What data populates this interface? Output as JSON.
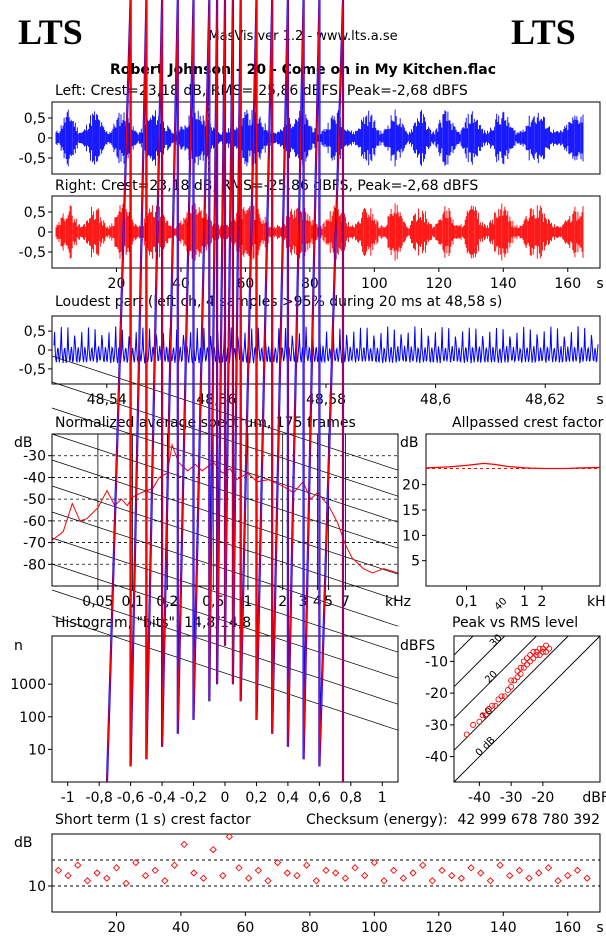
{
  "header": {
    "logo_left": "LTS",
    "logo_right": "LTS",
    "app_title": "MasVis ver 1.2 - www.lts.a.se",
    "file_title": "Robert Johnson - 20 - Come on in My Kitchen.flac"
  },
  "colors": {
    "left_channel": "#0000ff",
    "right_channel": "#ff0000",
    "background": "#ffffff",
    "axis": "#000000"
  },
  "chart_data": [
    {
      "id": "left_waveform",
      "type": "area",
      "title": "Left: Crest=23,18 dB, RMS=-25,86 dBFS, Peak=-2,68 dBFS",
      "y_ticks": [
        "0,5",
        "0",
        "-0,5"
      ],
      "ylim": [
        -0.9,
        0.9
      ],
      "xlim": [
        0,
        170
      ],
      "marker_x": 48.58
    },
    {
      "id": "right_waveform",
      "type": "area",
      "title": "Right: Crest=23,18 dB, RMS=-25,86 dBFS, Peak=-2,68 dBFS",
      "y_ticks": [
        "0,5",
        "0",
        "-0,5"
      ],
      "ylim": [
        -0.9,
        0.9
      ],
      "xlim": [
        0,
        170
      ],
      "x_ticks": [
        "20",
        "40",
        "60",
        "80",
        "100",
        "120",
        "140",
        "160"
      ],
      "x_tick_values": [
        20,
        40,
        60,
        80,
        100,
        120,
        140,
        160
      ],
      "x_unit": "s"
    },
    {
      "id": "loudest_part",
      "type": "line",
      "title": "Loudest part (left  ch, 4 samples >95% during 20 ms at 48,58 s)",
      "y_ticks": [
        "0,5",
        "0",
        "-0,5"
      ],
      "ylim": [
        -0.9,
        0.9
      ],
      "xlim": [
        48.53,
        48.63
      ],
      "x_ticks": [
        "48,54",
        "48,56",
        "48,58",
        "48,6",
        "48,62"
      ],
      "x_tick_values": [
        48.54,
        48.56,
        48.58,
        48.6,
        48.62
      ],
      "x_unit": "s"
    },
    {
      "id": "spectrum",
      "type": "line",
      "log_x": true,
      "title": "Normalized average spectrum, 175 frames",
      "ylabel": "dB",
      "y_ticks": [
        "-30",
        "-40",
        "-50",
        "-60",
        "-70",
        "-80"
      ],
      "y_tick_values": [
        -30,
        -40,
        -50,
        -60,
        -70,
        -80
      ],
      "ylim": [
        -90,
        -20
      ],
      "x_ticks": [
        "0,05",
        "0,1",
        "0,2",
        "0,5",
        "1",
        "2",
        "3",
        "4",
        "5",
        "7"
      ],
      "x_tick_values": [
        0.05,
        0.1,
        0.2,
        0.5,
        1,
        2,
        3,
        4,
        5,
        7
      ],
      "xlim": [
        0.02,
        20
      ],
      "x_unit": "kHz",
      "x": [
        0.02,
        0.025,
        0.03,
        0.035,
        0.04,
        0.05,
        0.06,
        0.07,
        0.08,
        0.09,
        0.1,
        0.12,
        0.15,
        0.17,
        0.2,
        0.22,
        0.25,
        0.3,
        0.35,
        0.4,
        0.5,
        0.6,
        0.7,
        0.8,
        1,
        1.2,
        1.5,
        2,
        2.5,
        3,
        3.5,
        4,
        5,
        6,
        7,
        8,
        10,
        12,
        15,
        20
      ],
      "values": [
        -69,
        -65,
        -52,
        -60,
        -59,
        -54,
        -46,
        -53,
        -50,
        -53,
        -49,
        -47,
        -45,
        -40,
        -38,
        -25,
        -33,
        -37,
        -34,
        -37,
        -33,
        -38,
        -36,
        -41,
        -38,
        -42,
        -41,
        -44,
        -47,
        -42,
        -50,
        -47,
        -53,
        -61,
        -71,
        -77,
        -82,
        -84,
        -82,
        -84
      ]
    },
    {
      "id": "allpassed_crest",
      "type": "line",
      "log_x": true,
      "title": "Allpassed crest factor",
      "ylabel": "dB",
      "y_ticks": [
        "20",
        "15",
        "10",
        "5"
      ],
      "y_tick_values": [
        20,
        15,
        10,
        5
      ],
      "ylim": [
        0,
        30
      ],
      "x_ticks": [
        "0,1",
        "1",
        "2"
      ],
      "x_tick_values": [
        0.1,
        1,
        2
      ],
      "xlim": [
        0.02,
        20
      ],
      "x_unit": "kHz",
      "x": [
        0.02,
        0.05,
        0.1,
        0.2,
        0.3,
        0.5,
        1,
        2,
        5,
        10,
        20
      ],
      "values": [
        23.3,
        23.5,
        23.8,
        24.2,
        24.0,
        23.6,
        23.3,
        23.2,
        23.2,
        23.3,
        23.4
      ],
      "reference": 23.18
    },
    {
      "id": "histogram",
      "type": "line",
      "log_y": true,
      "title": "Histogram, \"bits\": 14,8/14,8",
      "ylabel": "n",
      "y_ticks": [
        "1000",
        "100",
        "10"
      ],
      "y_tick_values": [
        1000,
        100,
        10
      ],
      "ylim": [
        1,
        30000
      ],
      "x_ticks": [
        "-1",
        "-0,8",
        "-0,6",
        "-0,4",
        "-0,2",
        "0",
        "0,2",
        "0,4",
        "0,6",
        "0,8",
        "1"
      ],
      "x_tick_values": [
        -1,
        -0.8,
        -0.6,
        -0.4,
        -0.2,
        0,
        0.2,
        0.4,
        0.6,
        0.8,
        1
      ],
      "xlim": [
        -1.1,
        1.1
      ],
      "x": [
        -0.75,
        -0.6,
        -0.5,
        -0.4,
        -0.3,
        -0.2,
        -0.1,
        -0.05,
        0,
        0.05,
        0.1,
        0.2,
        0.3,
        0.4,
        0.5,
        0.6,
        0.75
      ],
      "values": [
        1,
        3,
        5,
        12,
        30,
        80,
        300,
        1000,
        15000,
        1000,
        300,
        80,
        30,
        12,
        5,
        3,
        1
      ]
    },
    {
      "id": "peak_vs_rms",
      "type": "scatter",
      "title": "Peak vs RMS level",
      "ylabel": "dBFS",
      "y_ticks": [
        "-10",
        "-20",
        "-30",
        "-40"
      ],
      "y_tick_values": [
        -10,
        -20,
        -30,
        -40
      ],
      "ylim": [
        -48,
        -2
      ],
      "x_ticks": [
        "-40",
        "-30",
        "-20"
      ],
      "x_tick_values": [
        -40,
        -30,
        -20
      ],
      "xlim": [
        -48,
        -2
      ],
      "x_unit": "dBFS",
      "diagonal_labels": [
        "40",
        "30",
        "20",
        "10",
        "0 dB"
      ],
      "diagonal_offsets": [
        40,
        30,
        20,
        10,
        0
      ],
      "x": [
        -44,
        -42,
        -40,
        -39,
        -38,
        -37,
        -36,
        -35,
        -34,
        -33,
        -32,
        -31,
        -30,
        -30,
        -29,
        -28,
        -28,
        -27,
        -27,
        -26,
        -26,
        -25,
        -25,
        -24,
        -24,
        -23,
        -23,
        -22,
        -22,
        -21,
        -21,
        -20,
        -20,
        -19,
        -19,
        -18
      ],
      "values": [
        -33,
        -30,
        -29,
        -27,
        -27,
        -25,
        -24,
        -24,
        -22,
        -21,
        -21,
        -19,
        -18,
        -16,
        -16,
        -15,
        -13,
        -14,
        -12,
        -12,
        -10,
        -11,
        -9,
        -10,
        -8,
        -9,
        -7,
        -8,
        -7,
        -8,
        -6,
        -7,
        -6,
        -7,
        -5,
        -6
      ]
    },
    {
      "id": "short_term_crest",
      "type": "scatter",
      "title": "Short term (1 s) crest factor",
      "checksum_label": "Checksum (energy):",
      "checksum_value": "42 999 678 780 392",
      "ylabel": "dB",
      "y_ticks": [
        "10"
      ],
      "y_tick_values": [
        10
      ],
      "ylim": [
        0,
        30
      ],
      "xlim": [
        0,
        170
      ],
      "x_ticks": [
        "20",
        "40",
        "60",
        "80",
        "100",
        "120",
        "140",
        "160"
      ],
      "x_tick_values": [
        20,
        40,
        60,
        80,
        100,
        120,
        140,
        160
      ],
      "x_unit": "s",
      "dashed_levels": [
        10,
        20
      ],
      "x": [
        2,
        5,
        8,
        11,
        14,
        17,
        20,
        23,
        26,
        29,
        32,
        35,
        38,
        41,
        44,
        47,
        50,
        53,
        55,
        58,
        61,
        64,
        67,
        70,
        73,
        76,
        79,
        82,
        85,
        88,
        91,
        94,
        97,
        100,
        103,
        106,
        109,
        112,
        115,
        118,
        121,
        124,
        127,
        130,
        133,
        136,
        139,
        142,
        145,
        148,
        151,
        154,
        157,
        160,
        163,
        166
      ],
      "values": [
        16,
        14,
        18,
        12,
        15,
        13,
        17,
        11,
        19,
        14,
        16,
        12,
        18,
        26,
        15,
        13,
        24,
        14,
        29,
        17,
        13,
        16,
        12,
        19,
        15,
        14,
        18,
        12,
        16,
        15,
        13,
        17,
        14,
        19,
        12,
        16,
        13,
        15,
        18,
        12,
        16,
        14,
        13,
        17,
        15,
        12,
        18,
        14,
        16,
        13,
        15,
        17,
        12,
        14,
        16,
        13
      ]
    }
  ]
}
